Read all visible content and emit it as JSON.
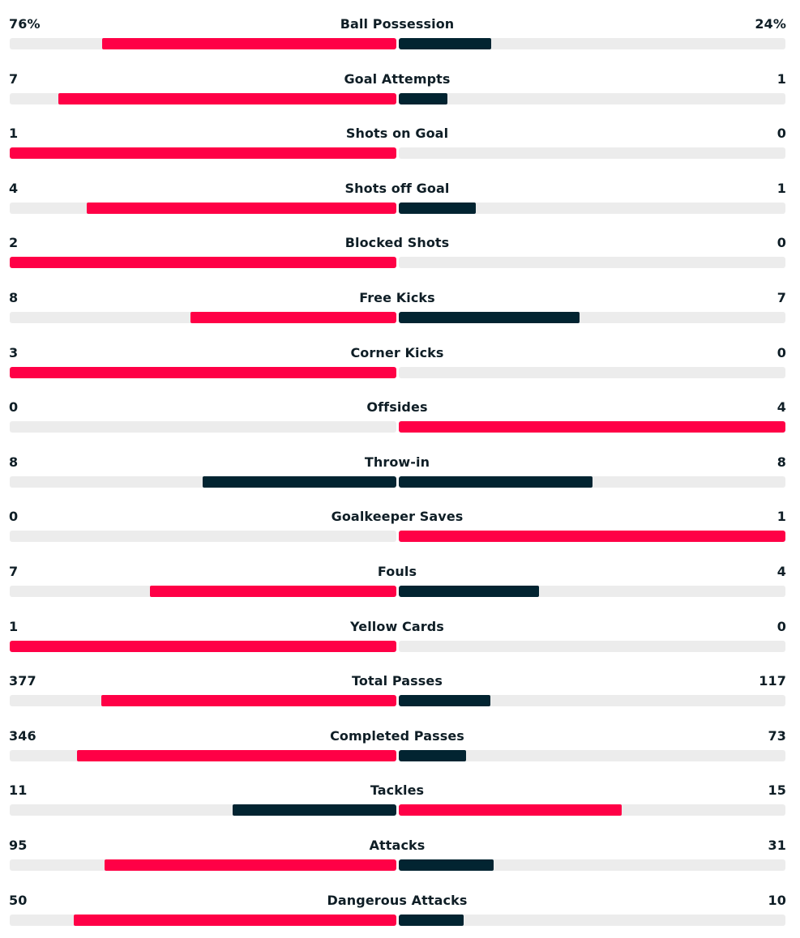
{
  "colors": {
    "leader": "#ff0046",
    "trailer": "#022431",
    "track": "#ececec",
    "text": "#0f1e26"
  },
  "stats": [
    {
      "name": "Ball Possession",
      "home": "76%",
      "away": "24%",
      "home_value": 76,
      "away_value": 24
    },
    {
      "name": "Goal Attempts",
      "home": "7",
      "away": "1",
      "home_value": 7,
      "away_value": 1
    },
    {
      "name": "Shots on Goal",
      "home": "1",
      "away": "0",
      "home_value": 1,
      "away_value": 0
    },
    {
      "name": "Shots off Goal",
      "home": "4",
      "away": "1",
      "home_value": 4,
      "away_value": 1
    },
    {
      "name": "Blocked Shots",
      "home": "2",
      "away": "0",
      "home_value": 2,
      "away_value": 0
    },
    {
      "name": "Free Kicks",
      "home": "8",
      "away": "7",
      "home_value": 8,
      "away_value": 7
    },
    {
      "name": "Corner Kicks",
      "home": "3",
      "away": "0",
      "home_value": 3,
      "away_value": 0
    },
    {
      "name": "Offsides",
      "home": "0",
      "away": "4",
      "home_value": 0,
      "away_value": 4
    },
    {
      "name": "Throw-in",
      "home": "8",
      "away": "8",
      "home_value": 8,
      "away_value": 8
    },
    {
      "name": "Goalkeeper Saves",
      "home": "0",
      "away": "1",
      "home_value": 0,
      "away_value": 1
    },
    {
      "name": "Fouls",
      "home": "7",
      "away": "4",
      "home_value": 7,
      "away_value": 4
    },
    {
      "name": "Yellow Cards",
      "home": "1",
      "away": "0",
      "home_value": 1,
      "away_value": 0
    },
    {
      "name": "Total Passes",
      "home": "377",
      "away": "117",
      "home_value": 377,
      "away_value": 117
    },
    {
      "name": "Completed Passes",
      "home": "346",
      "away": "73",
      "home_value": 346,
      "away_value": 73
    },
    {
      "name": "Tackles",
      "home": "11",
      "away": "15",
      "home_value": 11,
      "away_value": 15
    },
    {
      "name": "Attacks",
      "home": "95",
      "away": "31",
      "home_value": 95,
      "away_value": 31
    },
    {
      "name": "Dangerous Attacks",
      "home": "50",
      "away": "10",
      "home_value": 50,
      "away_value": 10
    }
  ]
}
